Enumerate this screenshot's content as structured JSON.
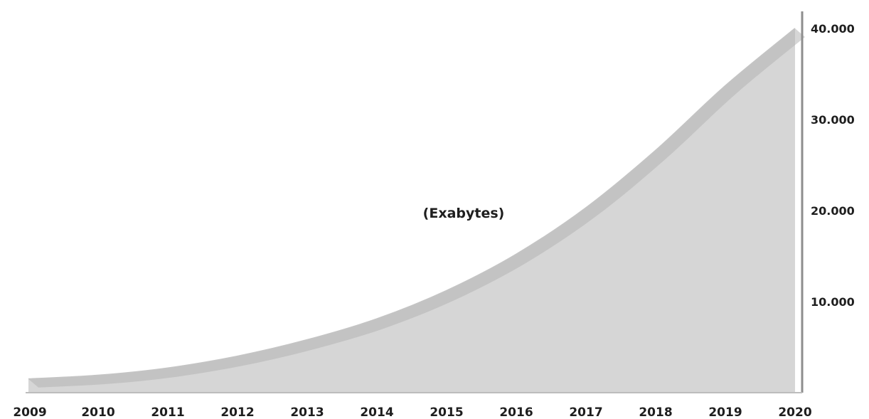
{
  "chart_data": {
    "type": "area",
    "title": "",
    "unit_label": "(Exabytes)",
    "x": [
      "2009",
      "2010",
      "2011",
      "2012",
      "2013",
      "2014",
      "2015",
      "2016",
      "2017",
      "2018",
      "2019",
      "2020"
    ],
    "values": [
      1500,
      1900,
      2700,
      4000,
      5800,
      8100,
      11200,
      15200,
      20300,
      26600,
      33700,
      40000
    ],
    "y_ticks": [
      {
        "value": 10000,
        "label": "10.000"
      },
      {
        "value": 20000,
        "label": "20.000"
      },
      {
        "value": 30000,
        "label": "30.000"
      },
      {
        "value": 40000,
        "label": "40.000"
      }
    ],
    "ylim": [
      0,
      40000
    ],
    "y_axis_side": "right",
    "grid": false,
    "legend": "none",
    "colors": {
      "fill": "#d6d6d6",
      "band": "#b5b5b5",
      "axis": "#8e8e8e",
      "text": "#1e1e1e"
    }
  }
}
